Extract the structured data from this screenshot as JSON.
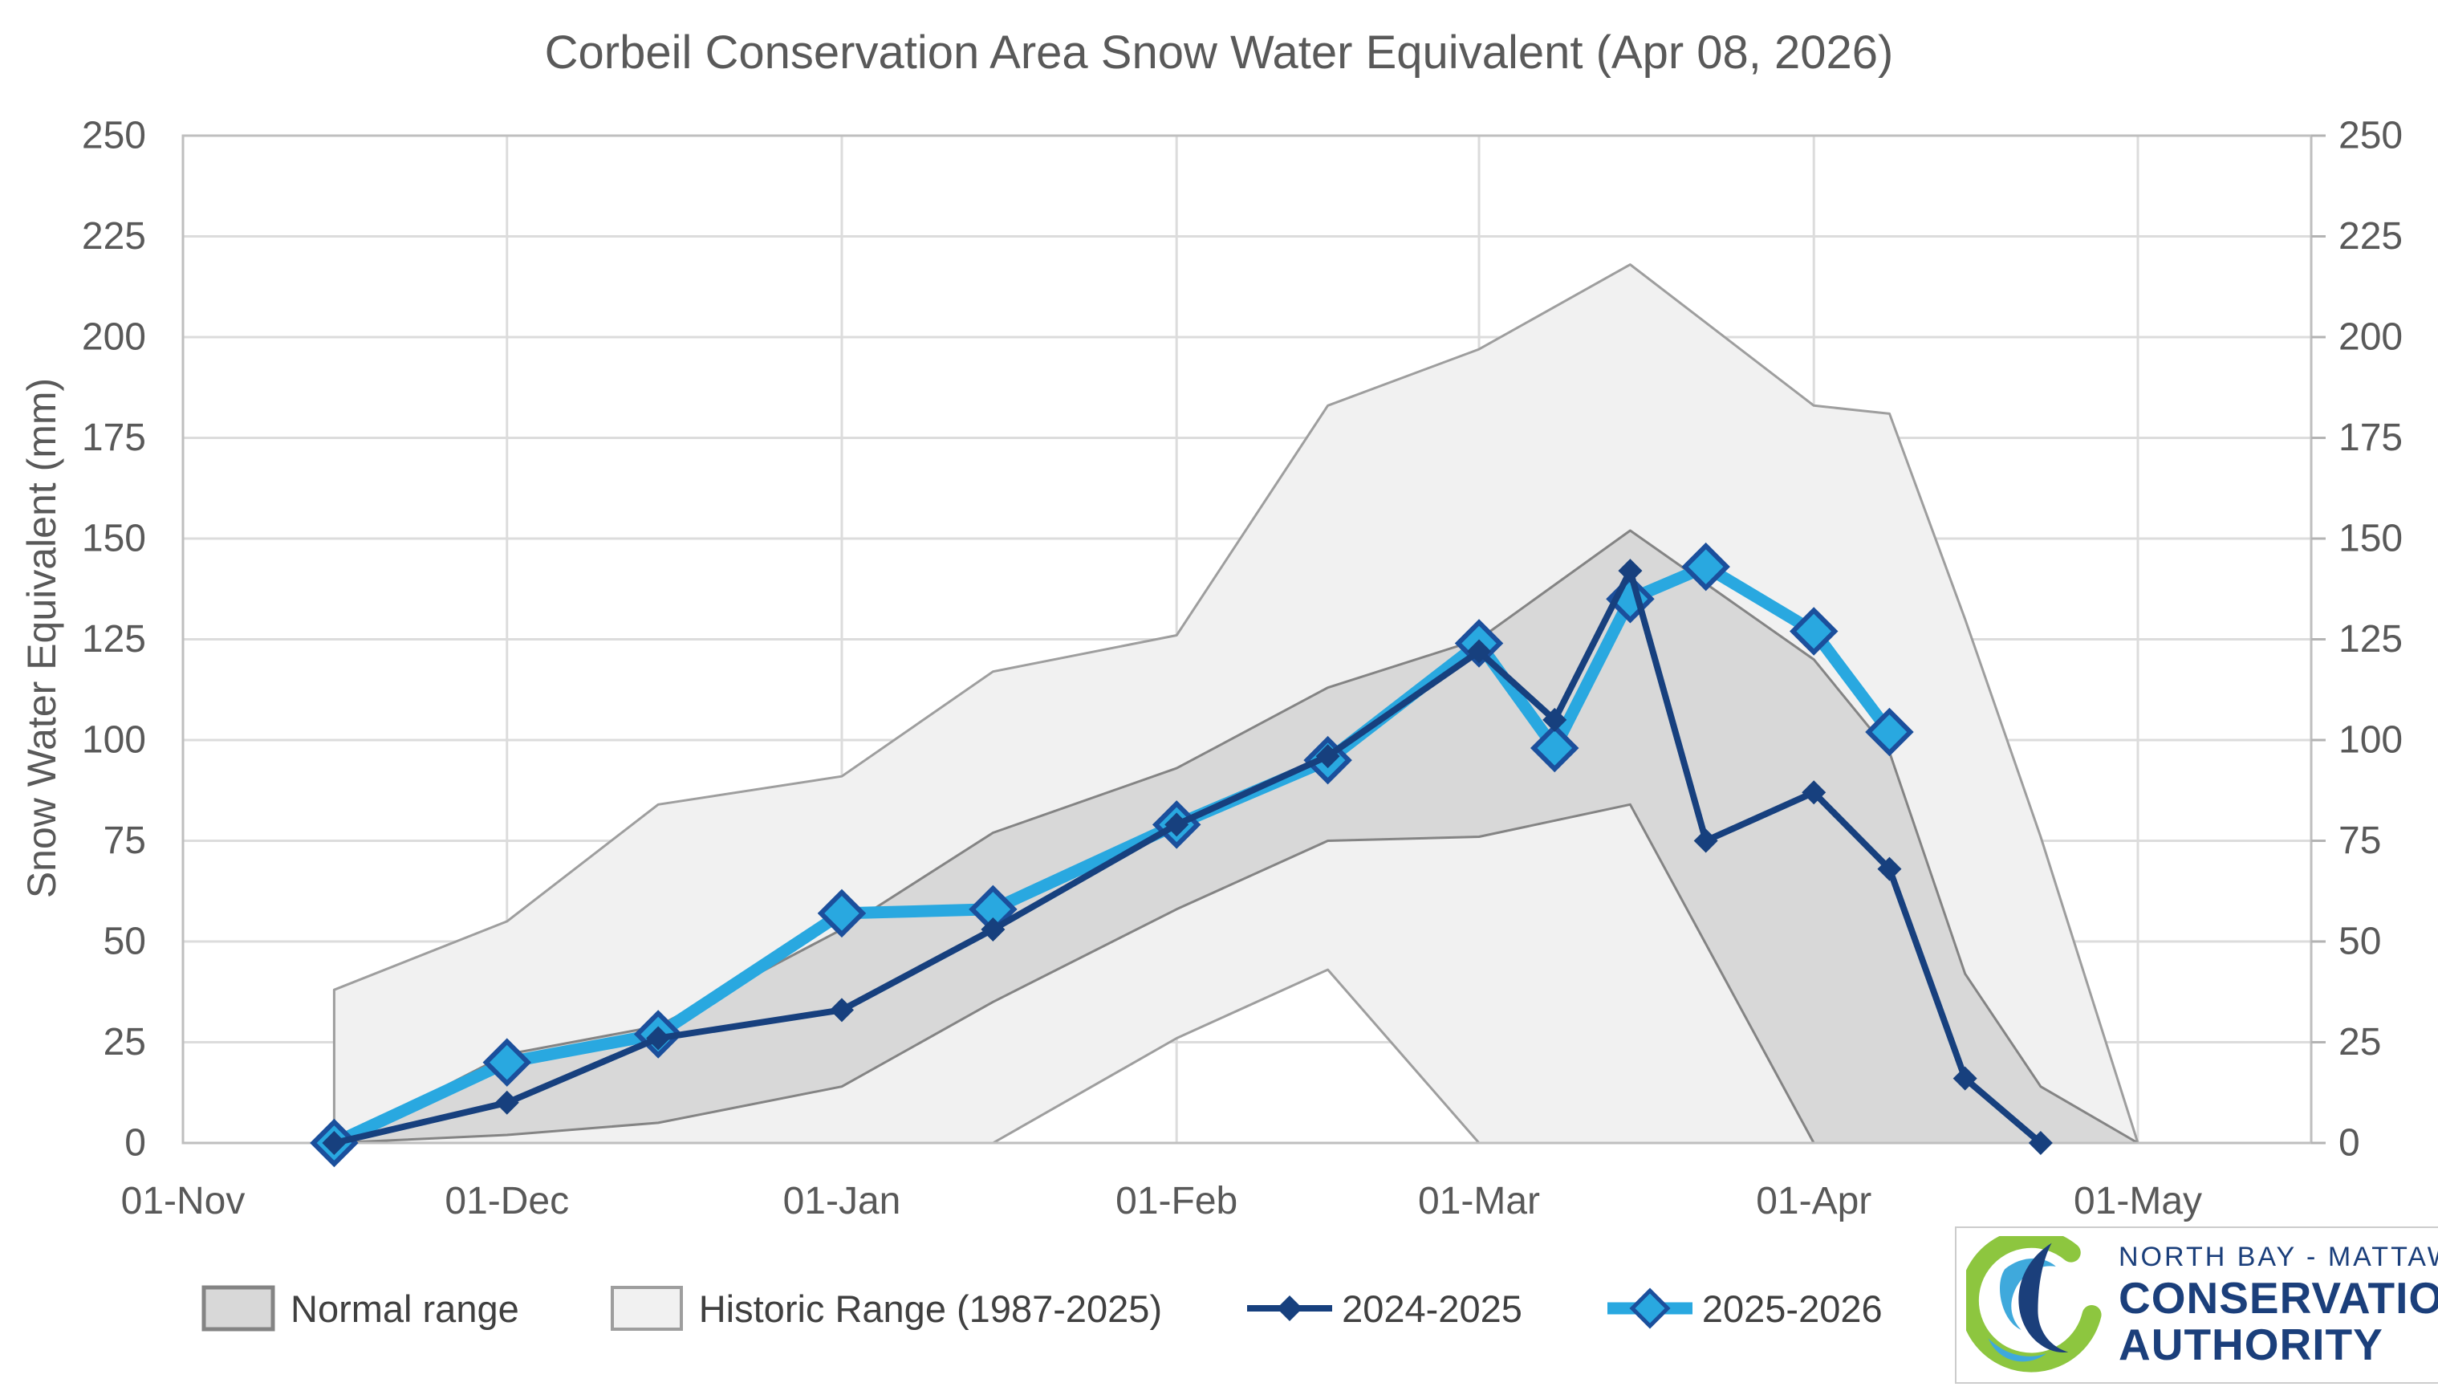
{
  "title": "Corbeil Conservation Area Snow Water Equivalent (Apr 08, 2026)",
  "colors": {
    "background": "#ffffff",
    "title_text": "#595959",
    "axis_text": "#595959",
    "legend_text": "#404040",
    "gridline": "#dcdcdc",
    "plot_border": "#bfbfbf",
    "axis_tick": "#b3b3b3",
    "normal_band_fill": "#d8d8d8",
    "normal_band_stroke": "#848484",
    "historic_band_fill": "#f1f1f1",
    "historic_band_stroke": "#9e9e9e",
    "series_2024_2025": "#17407E",
    "series_2025_2026": "#29A8E0",
    "series_2025_2026_marker_stroke": "#1B4F9C",
    "logo_navy": "#1B3F7B",
    "logo_green": "#8DC63F",
    "logo_blue": "#3FA9DC"
  },
  "logo": {
    "line1": "NORTH BAY - MATTAWA",
    "line2": "CONSERVATION",
    "line3": "AUTHORITY"
  },
  "chart_data": {
    "type": "line",
    "title": "Corbeil Conservation Area Snow Water Equivalent (Apr 08, 2026)",
    "xlabel": "",
    "ylabel": "Snow Water Equivalent (mm)",
    "ylim": [
      0,
      250
    ],
    "y_ticks": [
      0,
      25,
      50,
      75,
      100,
      125,
      150,
      175,
      200,
      225,
      250
    ],
    "y_axis_sides": [
      "left",
      "right"
    ],
    "grid": true,
    "legend_position": "bottom",
    "x_unit": "days since 01-Nov",
    "x_ticks": [
      {
        "label": "01-Nov",
        "day": 0
      },
      {
        "label": "01-Dec",
        "day": 30
      },
      {
        "label": "01-Jan",
        "day": 61
      },
      {
        "label": "01-Feb",
        "day": 92
      },
      {
        "label": "01-Mar",
        "day": 120
      },
      {
        "label": "01-Apr",
        "day": 151
      },
      {
        "label": "01-May",
        "day": 181
      }
    ],
    "bands": [
      {
        "name": "Historic Range (1987-2025)",
        "fill": "#f1f1f1",
        "stroke": "#9e9e9e",
        "points": [
          {
            "date": "15-Nov",
            "day": 14,
            "low": 0,
            "high": 38
          },
          {
            "date": "01-Dec",
            "day": 30,
            "low": 0,
            "high": 55
          },
          {
            "date": "15-Dec",
            "day": 44,
            "low": 0,
            "high": 84
          },
          {
            "date": "01-Jan",
            "day": 61,
            "low": 0,
            "high": 91
          },
          {
            "date": "15-Jan",
            "day": 75,
            "low": 0,
            "high": 117
          },
          {
            "date": "01-Feb",
            "day": 92,
            "low": 26,
            "high": 126
          },
          {
            "date": "15-Feb",
            "day": 106,
            "low": 43,
            "high": 183
          },
          {
            "date": "01-Mar",
            "day": 120,
            "low": 0,
            "high": 197
          },
          {
            "date": "15-Mar",
            "day": 134,
            "low": 0,
            "high": 218
          },
          {
            "date": "01-Apr",
            "day": 151,
            "low": 0,
            "high": 183
          },
          {
            "date": "08-Apr",
            "day": 158,
            "low": 0,
            "high": 181
          },
          {
            "date": "15-Apr",
            "day": 165,
            "low": 0,
            "high": 130
          },
          {
            "date": "22-Apr",
            "day": 172,
            "low": 0,
            "high": 76
          },
          {
            "date": "01-May",
            "day": 181,
            "low": 0,
            "high": 0
          }
        ]
      },
      {
        "name": "Normal range",
        "fill": "#d8d8d8",
        "stroke": "#848484",
        "points": [
          {
            "date": "15-Nov",
            "day": 14,
            "low": 0,
            "high": 0
          },
          {
            "date": "01-Dec",
            "day": 30,
            "low": 2,
            "high": 22
          },
          {
            "date": "15-Dec",
            "day": 44,
            "low": 5,
            "high": 29
          },
          {
            "date": "01-Jan",
            "day": 61,
            "low": 14,
            "high": 53
          },
          {
            "date": "15-Jan",
            "day": 75,
            "low": 35,
            "high": 77
          },
          {
            "date": "01-Feb",
            "day": 92,
            "low": 58,
            "high": 93
          },
          {
            "date": "15-Feb",
            "day": 106,
            "low": 75,
            "high": 113
          },
          {
            "date": "01-Mar",
            "day": 120,
            "low": 76,
            "high": 125
          },
          {
            "date": "15-Mar",
            "day": 134,
            "low": 84,
            "high": 152
          },
          {
            "date": "01-Apr",
            "day": 151,
            "low": 0,
            "high": 120
          },
          {
            "date": "08-Apr",
            "day": 158,
            "low": 0,
            "high": 97
          },
          {
            "date": "15-Apr",
            "day": 165,
            "low": 0,
            "high": 42
          },
          {
            "date": "22-Apr",
            "day": 172,
            "low": 0,
            "high": 14
          },
          {
            "date": "01-May",
            "day": 181,
            "low": 0,
            "high": 0
          }
        ]
      }
    ],
    "series": [
      {
        "name": "2025-2026",
        "color": "#29A8E0",
        "line_width": 15,
        "marker": "diamond",
        "marker_size": 26,
        "marker_stroke": "#1B4F9C",
        "marker_stroke_width": 6,
        "points": [
          {
            "date": "15-Nov",
            "day": 14,
            "value": 0
          },
          {
            "date": "01-Dec",
            "day": 30,
            "value": 20
          },
          {
            "date": "15-Dec",
            "day": 44,
            "value": 27
          },
          {
            "date": "01-Jan",
            "day": 61,
            "value": 57
          },
          {
            "date": "15-Jan",
            "day": 75,
            "value": 58
          },
          {
            "date": "01-Feb",
            "day": 92,
            "value": 79
          },
          {
            "date": "15-Feb",
            "day": 106,
            "value": 95
          },
          {
            "date": "01-Mar",
            "day": 120,
            "value": 124
          },
          {
            "date": "08-Mar",
            "day": 127,
            "value": 98
          },
          {
            "date": "15-Mar",
            "day": 134,
            "value": 135
          },
          {
            "date": "22-Mar",
            "day": 141,
            "value": 143
          },
          {
            "date": "01-Apr",
            "day": 151,
            "value": 127
          },
          {
            "date": "08-Apr",
            "day": 158,
            "value": 102
          }
        ]
      },
      {
        "name": "2024-2025",
        "color": "#17407E",
        "line_width": 8,
        "marker": "diamond",
        "marker_size": 15,
        "marker_stroke": "#17407E",
        "marker_stroke_width": 0,
        "points": [
          {
            "date": "15-Nov",
            "day": 14,
            "value": 0
          },
          {
            "date": "01-Dec",
            "day": 30,
            "value": 10
          },
          {
            "date": "15-Dec",
            "day": 44,
            "value": 26
          },
          {
            "date": "01-Jan",
            "day": 61,
            "value": 33
          },
          {
            "date": "15-Jan",
            "day": 75,
            "value": 53
          },
          {
            "date": "01-Feb",
            "day": 92,
            "value": 79
          },
          {
            "date": "15-Feb",
            "day": 106,
            "value": 96
          },
          {
            "date": "01-Mar",
            "day": 120,
            "value": 122
          },
          {
            "date": "08-Mar",
            "day": 127,
            "value": 105
          },
          {
            "date": "15-Mar",
            "day": 134,
            "value": 142
          },
          {
            "date": "22-Mar",
            "day": 141,
            "value": 75
          },
          {
            "date": "01-Apr",
            "day": 151,
            "value": 87
          },
          {
            "date": "08-Apr",
            "day": 158,
            "value": 68
          },
          {
            "date": "15-Apr",
            "day": 165,
            "value": 16
          },
          {
            "date": "22-Apr",
            "day": 172,
            "value": 0
          }
        ]
      }
    ],
    "legend": [
      {
        "label": "Normal range",
        "swatch": "band-normal"
      },
      {
        "label": "Historic Range (1987-2025)",
        "swatch": "band-historic"
      },
      {
        "label": "2024-2025",
        "swatch": "line-navy"
      },
      {
        "label": "2025-2026",
        "swatch": "line-cyan"
      }
    ]
  }
}
